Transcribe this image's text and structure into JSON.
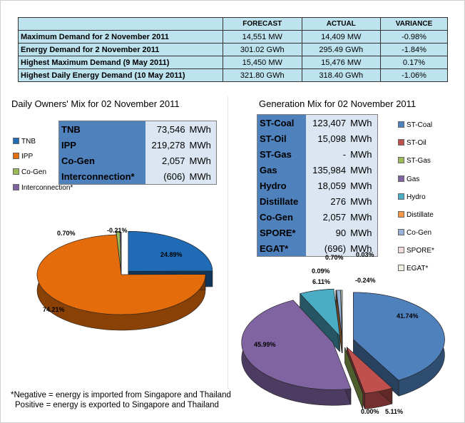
{
  "summary": {
    "headers": [
      "",
      "FORECAST",
      "ACTUAL",
      "VARIANCE"
    ],
    "rows": [
      {
        "label": "Maximum Demand for 2 November 2011",
        "forecast": "14,551  MW",
        "actual": "14,409  MW",
        "variance": "-0.98%"
      },
      {
        "label": "Energy Demand for 2 November 2011",
        "forecast": "301.02  GWh",
        "actual": "295.49  GWh",
        "variance": "-1.84%"
      },
      {
        "label": "Highest Maximum Demand (9 May 2011)",
        "forecast": "15,450  MW",
        "actual": "15,476  MW",
        "variance": "0.17%"
      },
      {
        "label": "Highest Daily Energy Demand (10 May 2011)",
        "forecast": "321.80  GWh",
        "actual": "318.40  GWh",
        "variance": "-1.06%"
      }
    ]
  },
  "owners": {
    "title": "Daily Owners' Mix for 02 November 2011",
    "table": [
      {
        "name": "TNB",
        "value": "73,546",
        "unit": "MWh"
      },
      {
        "name": "IPP",
        "value": "219,278",
        "unit": "MWh"
      },
      {
        "name": "Co-Gen",
        "value": "2,057",
        "unit": "MWh"
      },
      {
        "name": "Interconnection*",
        "value": "(606)",
        "unit": "MWh"
      }
    ],
    "legend": [
      {
        "name": "TNB",
        "color": "#1f6bb5"
      },
      {
        "name": "IPP",
        "color": "#e46c0a"
      },
      {
        "name": "Co-Gen",
        "color": "#9bbb59"
      },
      {
        "name": "Interconnection*",
        "color": "#8064a2"
      }
    ]
  },
  "generation": {
    "title": "Generation Mix for 02 November 2011",
    "table": [
      {
        "name": "ST-Coal",
        "value": "123,407",
        "unit": "MWh"
      },
      {
        "name": "ST-Oil",
        "value": "15,098",
        "unit": "MWh"
      },
      {
        "name": "ST-Gas",
        "value": "-",
        "unit": "MWh"
      },
      {
        "name": "Gas",
        "value": "135,984",
        "unit": "MWh"
      },
      {
        "name": "Hydro",
        "value": "18,059",
        "unit": "MWh"
      },
      {
        "name": "Distillate",
        "value": "276",
        "unit": "MWh"
      },
      {
        "name": "Co-Gen",
        "value": "2,057",
        "unit": "MWh"
      },
      {
        "name": "SPORE*",
        "value": "90",
        "unit": "MWh"
      },
      {
        "name": "EGAT*",
        "value": "(696)",
        "unit": "MWh"
      }
    ],
    "legend": [
      {
        "name": "ST-Coal",
        "color": "#4f81bd"
      },
      {
        "name": "ST-Oil",
        "color": "#c0504d"
      },
      {
        "name": "ST-Gas",
        "color": "#9bbb59"
      },
      {
        "name": "Gas",
        "color": "#8064a2"
      },
      {
        "name": "Hydro",
        "color": "#4bacc6"
      },
      {
        "name": "Distillate",
        "color": "#f79646"
      },
      {
        "name": "Co-Gen",
        "color": "#95b3d7"
      },
      {
        "name": "SPORE*",
        "color": "#f2dcdb"
      },
      {
        "name": "EGAT*",
        "color": "#ebf1de"
      }
    ]
  },
  "chart_data": [
    {
      "type": "pie",
      "title": "Daily Owners' Mix for 02 November 2011",
      "series": [
        {
          "categories": [
            "TNB",
            "IPP",
            "Co-Gen",
            "Interconnection*"
          ],
          "values": [
            24.89,
            74.21,
            0.7,
            -0.21
          ],
          "labels": [
            "24.89%",
            "74.21%",
            "0.70%",
            "-0.21%"
          ],
          "colors": [
            "#1f6bb5",
            "#e46c0a",
            "#9bbb59",
            "#8064a2"
          ]
        }
      ]
    },
    {
      "type": "pie",
      "title": "Generation Mix for 02 November 2011",
      "series": [
        {
          "categories": [
            "ST-Coal",
            "ST-Oil",
            "ST-Gas",
            "Gas",
            "Hydro",
            "Distillate",
            "Co-Gen",
            "SPORE*",
            "EGAT*"
          ],
          "values": [
            41.74,
            5.11,
            0.0,
            45.99,
            6.11,
            0.09,
            0.7,
            0.03,
            -0.24
          ],
          "labels": [
            "41.74%",
            "5.11%",
            "0.00%",
            "45.99%",
            "6.11%",
            "0.09%",
            "0.70%",
            "0.03%",
            "-0.24%"
          ],
          "colors": [
            "#4f81bd",
            "#c0504d",
            "#9bbb59",
            "#8064a2",
            "#4bacc6",
            "#f79646",
            "#95b3d7",
            "#f2dcdb",
            "#ebf1de"
          ]
        }
      ]
    }
  ],
  "footnote": {
    "line1": "*Negative = energy is imported from Singapore and Thailand",
    "line2": "Positive = energy is exported to Singapore and Thailand"
  }
}
